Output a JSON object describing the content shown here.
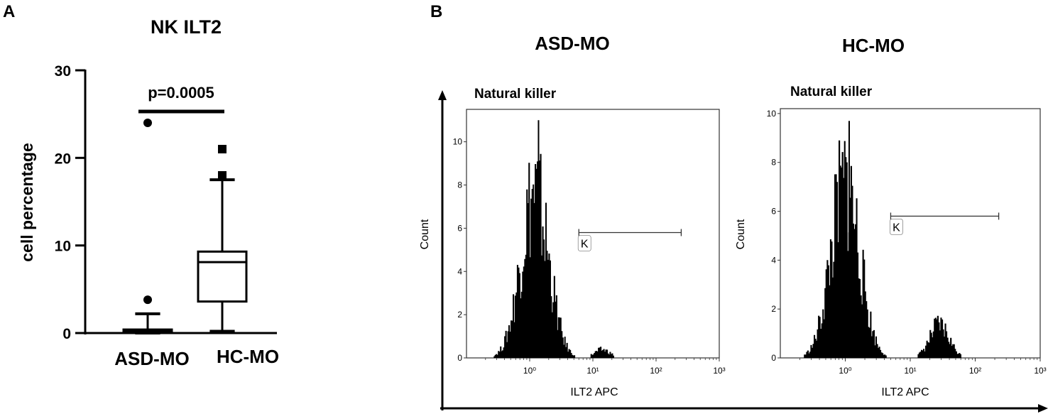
{
  "panels": {
    "a_letter": "A",
    "b_letter": "B"
  },
  "colors": {
    "ink": "#000000",
    "background": "#ffffff"
  },
  "chart_data": [
    {
      "type": "box",
      "title": "NK ILT2",
      "ylabel": "cell percentage",
      "xlabel": "",
      "ylim": [
        0,
        30
      ],
      "yticks": [
        0,
        10,
        20,
        30
      ],
      "categories": [
        "ASD-MO",
        "HC-MO"
      ],
      "boxes": [
        {
          "category": "ASD-MO",
          "whisker_low": 0,
          "q1": 0.1,
          "median": 0.2,
          "q3": 0.4,
          "whisker_high": 2.2,
          "outliers": [
            3.8,
            24.0
          ],
          "marker": "circle"
        },
        {
          "category": "HC-MO",
          "whisker_low": 0.2,
          "q1": 3.6,
          "median": 8.1,
          "q3": 9.3,
          "whisker_high": 17.5,
          "outliers": [
            18.0,
            21.0
          ],
          "marker": "square"
        }
      ],
      "annotation": {
        "text": "p=0.0005",
        "between": [
          "ASD-MO",
          "HC-MO"
        ],
        "y": 25.3
      }
    },
    {
      "type": "histogram",
      "title": "ASD-MO",
      "subtitle": "Natural killer",
      "xlabel": "ILT2 APC",
      "ylabel": "Count",
      "xscale": "log",
      "xlim": [
        0.1,
        1000
      ],
      "xtick_labels": [
        "10⁰",
        "10¹",
        "10²",
        "10³"
      ],
      "xtick_values": [
        1,
        10,
        100,
        1000
      ],
      "ylim": [
        0,
        11.5
      ],
      "yticks": [
        0,
        2,
        4,
        6,
        8,
        10
      ],
      "gate": {
        "label": "K",
        "x_start": 6,
        "x_end": 250,
        "y": 5.8
      },
      "peaks": [
        {
          "center_log": 0.08,
          "width_log": 0.22,
          "height": 8.2
        },
        {
          "center_log": 1.15,
          "width_log": 0.12,
          "height": 0.4
        }
      ],
      "max_count": 11.0
    },
    {
      "type": "histogram",
      "title": "HC-MO",
      "subtitle": "Natural killer",
      "xlabel": "ILT2 APC",
      "ylabel": "Count",
      "xscale": "log",
      "xlim": [
        0.1,
        1000
      ],
      "xtick_labels": [
        "10⁰",
        "10¹",
        "10²",
        "10³"
      ],
      "xtick_values": [
        1,
        10,
        100,
        1000
      ],
      "ylim": [
        0,
        10.2
      ],
      "yticks": [
        0,
        2,
        4,
        6,
        8,
        10
      ],
      "gate": {
        "label": "K",
        "x_start": 5,
        "x_end": 230,
        "y": 5.8
      },
      "peaks": [
        {
          "center_log": 0.0,
          "width_log": 0.22,
          "height": 7.6
        },
        {
          "center_log": 1.45,
          "width_log": 0.15,
          "height": 1.4
        }
      ],
      "max_count": 9.7
    }
  ]
}
